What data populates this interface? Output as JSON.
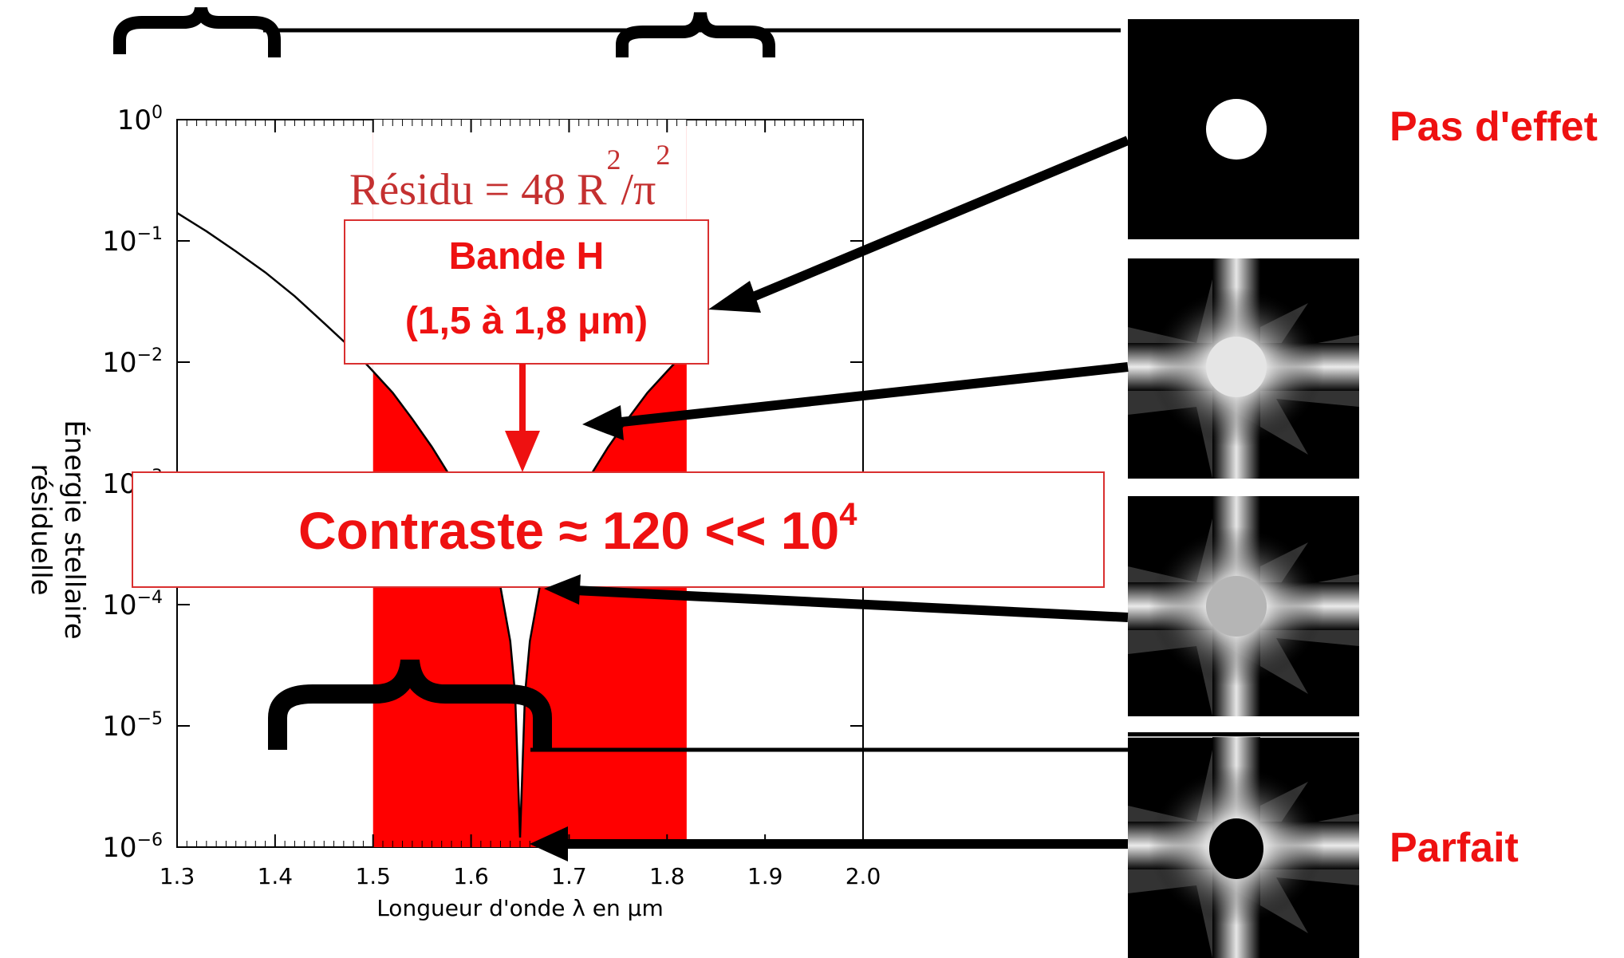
{
  "chart_data": {
    "type": "line",
    "xlabel": "Longueur d'onde λ en μm",
    "ylabel_line1": "Énergie stellaire",
    "ylabel_line2": "résiduelle",
    "xlim": [
      1.3,
      2.0
    ],
    "ylim": [
      1e-06,
      1
    ],
    "log_y": true,
    "x_ticks": [
      "1.3",
      "1.4",
      "1.5",
      "1.6",
      "1.7",
      "1.8",
      "1.9",
      "2.0"
    ],
    "y_tick_exponents": [
      "0",
      "-1",
      "-2",
      "-3",
      "-4",
      "-5",
      "-6"
    ],
    "y_tick_base": "10",
    "band": {
      "x_start": 1.5,
      "x_end": 1.82,
      "color": "#ff0000"
    },
    "curve_x": [
      1.3,
      1.33,
      1.36,
      1.39,
      1.42,
      1.45,
      1.48,
      1.5,
      1.52,
      1.54,
      1.56,
      1.58,
      1.6,
      1.61,
      1.62,
      1.63,
      1.64,
      1.645,
      1.65,
      1.655,
      1.66,
      1.67,
      1.68,
      1.69,
      1.7,
      1.72,
      1.74,
      1.76,
      1.78,
      1.8,
      1.82
    ],
    "curve_y": [
      0.17,
      0.12,
      0.082,
      0.055,
      0.035,
      0.021,
      0.0125,
      0.0084,
      0.0056,
      0.0034,
      0.002,
      0.0011,
      0.00058,
      0.00041,
      0.00026,
      0.00014,
      5e-05,
      1.8e-05,
      1.2e-06,
      1.8e-05,
      5e-05,
      0.00014,
      0.00026,
      0.00041,
      0.00058,
      0.0011,
      0.002,
      0.0034,
      0.0056,
      0.0084,
      0.0125
    ],
    "formula_prefix": "Résidu =  48 R",
    "formula_exp1": "2",
    "formula_mid": "/π",
    "formula_exp2": "2",
    "box_h_line1": "Bande H",
    "box_h_line2": "(1,5 à 1,8 μm)",
    "contrast_text": "Contraste ≈ 120 << 10",
    "contrast_exp": "4",
    "label_top": "Pas d'effet",
    "label_bottom": "Parfait",
    "accent_color": "#ee1111"
  }
}
